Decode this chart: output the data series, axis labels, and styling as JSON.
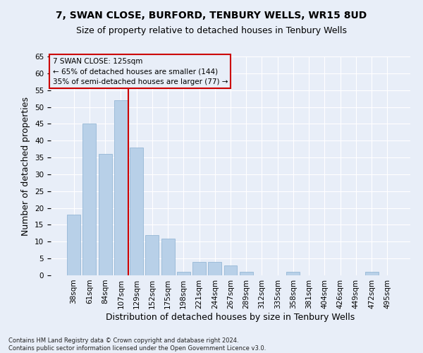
{
  "title1": "7, SWAN CLOSE, BURFORD, TENBURY WELLS, WR15 8UD",
  "title2": "Size of property relative to detached houses in Tenbury Wells",
  "xlabel": "Distribution of detached houses by size in Tenbury Wells",
  "ylabel": "Number of detached properties",
  "categories": [
    "38sqm",
    "61sqm",
    "84sqm",
    "107sqm",
    "129sqm",
    "152sqm",
    "175sqm",
    "198sqm",
    "221sqm",
    "244sqm",
    "267sqm",
    "289sqm",
    "312sqm",
    "335sqm",
    "358sqm",
    "381sqm",
    "404sqm",
    "426sqm",
    "449sqm",
    "472sqm",
    "495sqm"
  ],
  "values": [
    18,
    45,
    36,
    52,
    38,
    12,
    11,
    1,
    4,
    4,
    3,
    1,
    0,
    0,
    1,
    0,
    0,
    0,
    0,
    1,
    0
  ],
  "bar_color": "#b8d0e8",
  "bar_edge_color": "#8ab0d0",
  "background_color": "#e8eef8",
  "grid_color": "#ffffff",
  "vline_color": "#cc0000",
  "annotation_lines": [
    "7 SWAN CLOSE: 125sqm",
    "← 65% of detached houses are smaller (144)",
    "35% of semi-detached houses are larger (77) →"
  ],
  "annotation_box_color": "#cc0000",
  "ylim": [
    0,
    65
  ],
  "yticks": [
    0,
    5,
    10,
    15,
    20,
    25,
    30,
    35,
    40,
    45,
    50,
    55,
    60,
    65
  ],
  "footer": "Contains HM Land Registry data © Crown copyright and database right 2024.\nContains public sector information licensed under the Open Government Licence v3.0.",
  "title_fontsize": 10,
  "subtitle_fontsize": 9,
  "tick_fontsize": 7.5,
  "label_fontsize": 9
}
